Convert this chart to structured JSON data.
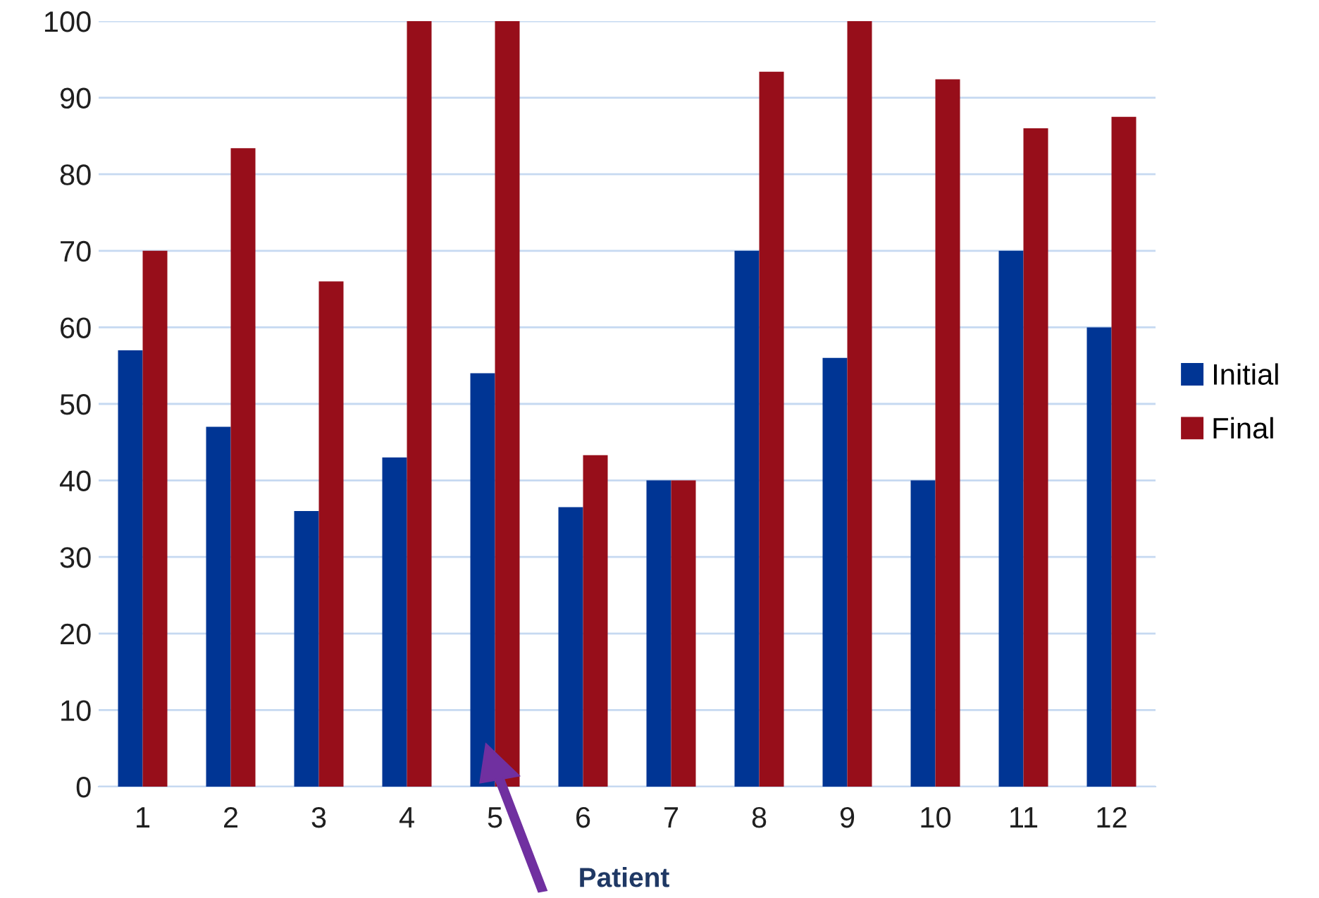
{
  "chart_data": {
    "type": "bar",
    "xlabel": "Patient",
    "categories": [
      "1",
      "2",
      "3",
      "4",
      "5",
      "6",
      "7",
      "8",
      "9",
      "10",
      "11",
      "12"
    ],
    "series": [
      {
        "name": "Initial",
        "color": "#003594",
        "values": [
          57,
          47,
          36,
          43,
          54,
          36.5,
          40,
          70,
          56,
          40,
          70,
          60
        ]
      },
      {
        "name": "Final",
        "color": "#970e1a",
        "values": [
          70,
          83.4,
          66,
          100,
          100,
          43.3,
          40,
          93.4,
          100,
          92.4,
          86,
          87.5
        ]
      }
    ],
    "ylim": [
      0,
      100
    ],
    "yticks": [
      0,
      10,
      20,
      30,
      40,
      50,
      60,
      70,
      80,
      90,
      100
    ],
    "grid": "y",
    "legend": "right"
  }
}
